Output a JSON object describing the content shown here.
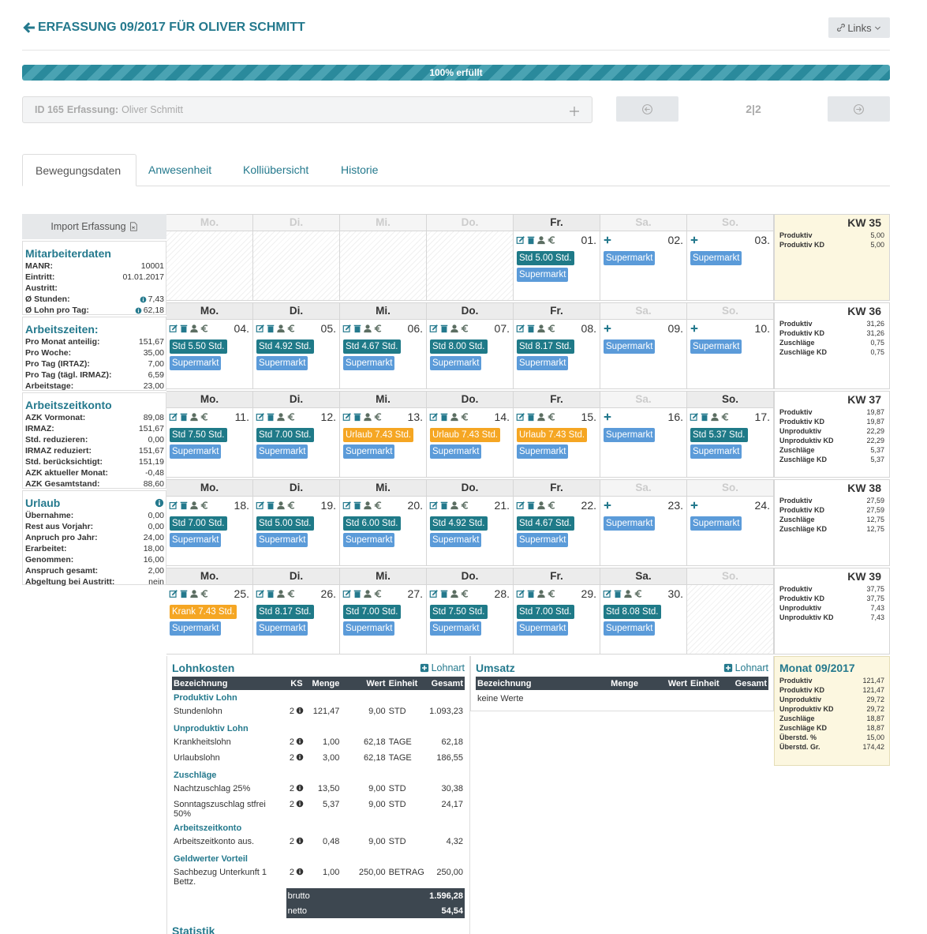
{
  "header": {
    "title": "ERFASSUNG 09/2017 FÜR OLIVER SCHMITT",
    "links_button": "Links"
  },
  "progress": {
    "label": "100% erfüllt",
    "value": 100
  },
  "record": {
    "id_label": "ID 165",
    "field_label": "Erfassung:",
    "name": "Oliver Schmitt",
    "pager": "2|2"
  },
  "tabs": [
    "Bewegungsdaten",
    "Anwesenheit",
    "Kolliübersicht",
    "Historie"
  ],
  "import_button": "Import Erfassung",
  "sidebar": [
    {
      "title": "Mitarbeiterdaten",
      "rows": [
        [
          "MANR:",
          "10001"
        ],
        [
          "Eintritt:",
          "01.01.2017"
        ],
        [
          "Austritt:"
        ],
        [
          "Ø Stunden:",
          "7,43",
          "info"
        ],
        [
          "Ø Lohn pro Tag:",
          "62,18",
          "info"
        ]
      ]
    },
    {
      "title": "Arbeitszeiten:",
      "rows": [
        [
          "Pro Monat anteilig:",
          "151,67"
        ],
        [
          "Pro Woche:",
          "35,00"
        ],
        [
          "Pro Tag (IRTAZ):",
          "7,00"
        ],
        [
          "Pro Tag (tägl. IRMAZ):",
          "6,59"
        ],
        [
          "Arbeitstage:",
          "23,00"
        ]
      ]
    },
    {
      "title": "Arbeitszeitkonto",
      "rows": [
        [
          "AZK Vormonat:",
          "89,08"
        ],
        [
          "IRMAZ:",
          "151,67"
        ],
        [
          "Std. reduzieren:",
          "0,00"
        ],
        [
          "IRMAZ reduziert:",
          "151,67"
        ],
        [
          "Std. berücksichtigt:",
          "151,19"
        ],
        [
          "AZK aktueller Monat:",
          "-0,48"
        ],
        [
          "AZK Gesamtstand:",
          "88,60"
        ]
      ]
    },
    {
      "title": "Urlaub",
      "info": true,
      "rows": [
        [
          "Übernahme:",
          "0,00"
        ],
        [
          "Rest aus Vorjahr:",
          "0,00"
        ],
        [
          "Anpruch pro Jahr:",
          "24,00"
        ],
        [
          "Erarbeitet:",
          "18,00"
        ],
        [
          "Genommen:",
          "16,00"
        ],
        [
          "Anspruch gesamt:",
          "2,00"
        ],
        [
          "Abgeltung bei Austritt:",
          "nein"
        ]
      ]
    }
  ],
  "weeks": [
    {
      "kw": "KW 35",
      "highlight": true,
      "stats": [
        [
          "Produktiv",
          "5,00"
        ],
        [
          "Produktiv KD",
          "5,00"
        ]
      ],
      "days": [
        {
          "name": "Mo.",
          "header": "muted",
          "mode": "empty"
        },
        {
          "name": "Di.",
          "header": "muted",
          "mode": "empty"
        },
        {
          "name": "Mi.",
          "header": "muted",
          "mode": "empty"
        },
        {
          "name": "Do.",
          "header": "muted",
          "mode": "empty"
        },
        {
          "name": "Fr.",
          "header": "active",
          "mode": "edit",
          "date": "01.",
          "entries": [
            {
              "label": "Std 5.00 Std.",
              "color": "#1f7a88"
            }
          ],
          "extra": "Supermarkt"
        },
        {
          "name": "Sa.",
          "header": "muted",
          "mode": "add",
          "date": "02.",
          "extra": "Supermarkt"
        },
        {
          "name": "So.",
          "header": "muted",
          "mode": "add",
          "date": "03.",
          "extra": "Supermarkt"
        }
      ]
    },
    {
      "kw": "KW 36",
      "stats": [
        [
          "Produktiv",
          "31,26"
        ],
        [
          "Produktiv KD",
          "31,26"
        ],
        [
          "Zuschläge",
          "0,75"
        ],
        [
          "Zuschläge KD",
          "0,75"
        ]
      ],
      "days": [
        {
          "name": "Mo.",
          "header": "active",
          "mode": "edit",
          "date": "04.",
          "entries": [
            {
              "label": "Std 5.50 Std.",
              "color": "#1f7a88"
            }
          ],
          "extra": "Supermarkt"
        },
        {
          "name": "Di.",
          "header": "active",
          "mode": "edit",
          "date": "05.",
          "entries": [
            {
              "label": "Std 4.92 Std.",
              "color": "#1f7a88"
            }
          ],
          "extra": "Supermarkt"
        },
        {
          "name": "Mi.",
          "header": "active",
          "mode": "edit",
          "date": "06.",
          "entries": [
            {
              "label": "Std 4.67 Std.",
              "color": "#1f7a88"
            }
          ],
          "extra": "Supermarkt"
        },
        {
          "name": "Do.",
          "header": "active",
          "mode": "edit",
          "date": "07.",
          "entries": [
            {
              "label": "Std 8.00 Std.",
              "color": "#1f7a88"
            }
          ],
          "extra": "Supermarkt"
        },
        {
          "name": "Fr.",
          "header": "active",
          "mode": "edit",
          "date": "08.",
          "entries": [
            {
              "label": "Std 8.17 Std.",
              "color": "#1f7a88"
            }
          ],
          "extra": "Supermarkt"
        },
        {
          "name": "Sa.",
          "header": "muted",
          "mode": "add",
          "date": "09.",
          "extra": "Supermarkt"
        },
        {
          "name": "So.",
          "header": "muted",
          "mode": "add",
          "date": "10.",
          "extra": "Supermarkt"
        }
      ]
    },
    {
      "kw": "KW 37",
      "stats": [
        [
          "Produktiv",
          "19,87"
        ],
        [
          "Produktiv KD",
          "19,87"
        ],
        [
          "Unproduktiv",
          "22,29"
        ],
        [
          "Unproduktiv KD",
          "22,29"
        ],
        [
          "Zuschläge",
          "5,37"
        ],
        [
          "Zuschläge KD",
          "5,37"
        ]
      ],
      "days": [
        {
          "name": "Mo.",
          "header": "active",
          "mode": "edit",
          "date": "11.",
          "entries": [
            {
              "label": "Std 7.50 Std.",
              "color": "#1f7a88"
            }
          ],
          "extra": "Supermarkt"
        },
        {
          "name": "Di.",
          "header": "active",
          "mode": "edit",
          "date": "12.",
          "entries": [
            {
              "label": "Std 7.00 Std.",
              "color": "#1f7a88"
            }
          ],
          "extra": "Supermarkt"
        },
        {
          "name": "Mi.",
          "header": "active",
          "mode": "edit",
          "date": "13.",
          "entries": [
            {
              "label": "Urlaub 7.43 Std.",
              "color": "#f5a623"
            }
          ],
          "extra": "Supermarkt"
        },
        {
          "name": "Do.",
          "header": "active",
          "mode": "edit",
          "date": "14.",
          "entries": [
            {
              "label": "Urlaub 7.43 Std.",
              "color": "#f5a623"
            }
          ],
          "extra": "Supermarkt"
        },
        {
          "name": "Fr.",
          "header": "active",
          "mode": "edit",
          "date": "15.",
          "entries": [
            {
              "label": "Urlaub 7.43 Std.",
              "color": "#f5a623"
            }
          ],
          "extra": "Supermarkt"
        },
        {
          "name": "Sa.",
          "header": "muted",
          "mode": "add",
          "date": "16.",
          "extra": "Supermarkt"
        },
        {
          "name": "So.",
          "header": "active",
          "mode": "edit",
          "date": "17.",
          "entries": [
            {
              "label": "Std 5.37 Std.",
              "color": "#1f7a88"
            }
          ],
          "extra": "Supermarkt"
        }
      ]
    },
    {
      "kw": "KW 38",
      "stats": [
        [
          "Produktiv",
          "27,59"
        ],
        [
          "Produktiv KD",
          "27,59"
        ],
        [
          "Zuschläge",
          "12,75"
        ],
        [
          "Zuschläge KD",
          "12,75"
        ]
      ],
      "days": [
        {
          "name": "Mo.",
          "header": "active",
          "mode": "edit",
          "date": "18.",
          "entries": [
            {
              "label": "Std 7.00 Std.",
              "color": "#1f7a88"
            }
          ],
          "extra": "Supermarkt"
        },
        {
          "name": "Di.",
          "header": "active",
          "mode": "edit",
          "date": "19.",
          "entries": [
            {
              "label": "Std 5.00 Std.",
              "color": "#1f7a88"
            }
          ],
          "extra": "Supermarkt"
        },
        {
          "name": "Mi.",
          "header": "active",
          "mode": "edit",
          "date": "20.",
          "entries": [
            {
              "label": "Std 6.00 Std.",
              "color": "#1f7a88"
            }
          ],
          "extra": "Supermarkt"
        },
        {
          "name": "Do.",
          "header": "active",
          "mode": "edit",
          "date": "21.",
          "entries": [
            {
              "label": "Std 4.92 Std.",
              "color": "#1f7a88"
            }
          ],
          "extra": "Supermarkt"
        },
        {
          "name": "Fr.",
          "header": "active",
          "mode": "edit",
          "date": "22.",
          "entries": [
            {
              "label": "Std 4.67 Std.",
              "color": "#1f7a88"
            }
          ],
          "extra": "Supermarkt"
        },
        {
          "name": "Sa.",
          "header": "muted",
          "mode": "add",
          "date": "23.",
          "extra": "Supermarkt"
        },
        {
          "name": "So.",
          "header": "muted",
          "mode": "add",
          "date": "24.",
          "extra": "Supermarkt"
        }
      ]
    },
    {
      "kw": "KW 39",
      "stats": [
        [
          "Produktiv",
          "37,75"
        ],
        [
          "Produktiv KD",
          "37,75"
        ],
        [
          "Unproduktiv",
          "7,43"
        ],
        [
          "Unproduktiv KD",
          "7,43"
        ]
      ],
      "days": [
        {
          "name": "Mo.",
          "header": "active",
          "mode": "edit",
          "date": "25.",
          "entries": [
            {
              "label": "Krank 7.43 Std.",
              "color": "#f5a623"
            }
          ],
          "extra": "Supermarkt"
        },
        {
          "name": "Di.",
          "header": "active",
          "mode": "edit",
          "date": "26.",
          "entries": [
            {
              "label": "Std 8.17 Std.",
              "color": "#1f7a88"
            }
          ],
          "extra": "Supermarkt"
        },
        {
          "name": "Mi.",
          "header": "active",
          "mode": "edit",
          "date": "27.",
          "entries": [
            {
              "label": "Std 7.00 Std.",
              "color": "#1f7a88"
            }
          ],
          "extra": "Supermarkt"
        },
        {
          "name": "Do.",
          "header": "active",
          "mode": "edit",
          "date": "28.",
          "entries": [
            {
              "label": "Std 7.50 Std.",
              "color": "#1f7a88"
            }
          ],
          "extra": "Supermarkt"
        },
        {
          "name": "Fr.",
          "header": "active",
          "mode": "edit",
          "date": "29.",
          "entries": [
            {
              "label": "Std 7.00 Std.",
              "color": "#1f7a88"
            }
          ],
          "extra": "Supermarkt"
        },
        {
          "name": "Sa.",
          "header": "active",
          "mode": "edit",
          "date": "30.",
          "entries": [
            {
              "label": "Std 8.08 Std.",
              "color": "#1f7a88"
            }
          ],
          "extra": "Supermarkt"
        },
        {
          "name": "So.",
          "header": "muted",
          "mode": "empty"
        }
      ]
    }
  ],
  "lohnkosten": {
    "title": "Lohnkosten",
    "add": "Lohnart",
    "columns": [
      "Bezeichnung",
      "KS",
      "Menge",
      "Wert",
      "Einheit",
      "Gesamt"
    ],
    "groups": [
      {
        "title": "Produktiv Lohn",
        "rows": [
          [
            "Stundenlohn",
            "2",
            "121,47",
            "9,00",
            "STD",
            "1.093,23"
          ]
        ]
      },
      {
        "title": "Unproduktiv Lohn",
        "rows": [
          [
            "Krankheitslohn",
            "2",
            "1,00",
            "62,18",
            "TAGE",
            "62,18"
          ],
          [
            "Urlaubslohn",
            "2",
            "3,00",
            "62,18",
            "TAGE",
            "186,55"
          ]
        ]
      },
      {
        "title": "Zuschläge",
        "rows": [
          [
            "Nachtzuschlag 25%",
            "2",
            "13,50",
            "9,00",
            "STD",
            "30,38"
          ],
          [
            "Sonntagszuschlag stfrei 50%",
            "2",
            "5,37",
            "9,00",
            "STD",
            "24,17"
          ]
        ]
      },
      {
        "title": "Arbeitszeitkonto",
        "rows": [
          [
            "Arbeitszeitkonto aus.",
            "2",
            "0,48",
            "9,00",
            "STD",
            "4,32"
          ]
        ]
      },
      {
        "title": "Geldwerter Vorteil",
        "rows": [
          [
            "Sachbezug Unterkunft 1 Bettz.",
            "2",
            "1,00",
            "250,00",
            "BETRAG",
            "250,00"
          ]
        ]
      }
    ],
    "totals": [
      [
        "brutto",
        "1.596,28"
      ],
      [
        "netto",
        "54,54"
      ]
    ]
  },
  "umsatz": {
    "title": "Umsatz",
    "add": "Lohnart",
    "columns": [
      "Bezeichnung",
      "Menge",
      "Wert",
      "Einheit",
      "Gesamt"
    ],
    "empty": "keine Werte"
  },
  "monat": {
    "title": "Monat 09/2017",
    "rows": [
      [
        "Produktiv",
        "121,47"
      ],
      [
        "Produktiv KD",
        "121,47"
      ],
      [
        "Unproduktiv",
        "29,72"
      ],
      [
        "Unproduktiv KD",
        "29,72"
      ],
      [
        "Zuschläge",
        "18,87"
      ],
      [
        "Zuschläge KD",
        "18,87"
      ],
      [
        "Überstd. %",
        "15,00"
      ],
      [
        "Überstd. Gr.",
        "174,42"
      ]
    ]
  },
  "statistik": {
    "title": "Statistik"
  }
}
